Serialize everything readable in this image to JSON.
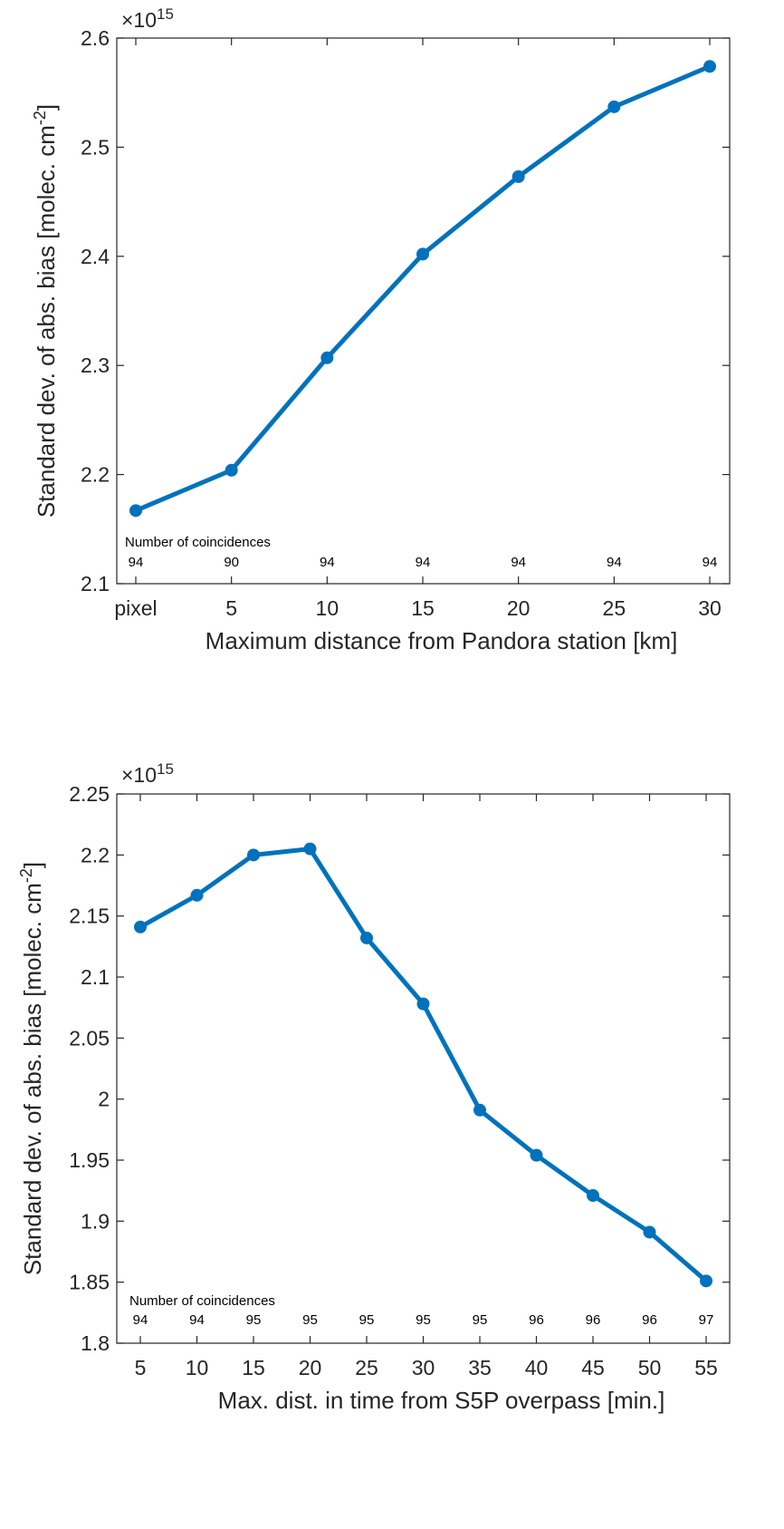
{
  "chart_data": [
    {
      "type": "line",
      "categories": [
        "pixel",
        "5",
        "10",
        "15",
        "20",
        "25",
        "30"
      ],
      "values": [
        2.167,
        2.204,
        2.307,
        2.402,
        2.473,
        2.537,
        2.574
      ],
      "ylim": [
        2.1,
        2.6
      ],
      "yticks": [
        "2.1",
        "2.2",
        "2.3",
        "2.4",
        "2.5",
        "2.6"
      ],
      "exponent_label": "×10",
      "exponent_power": "15",
      "ylabel": "Standard dev. of abs. bias [molec. cm",
      "ylabel_sup": "-2",
      "ylabel_end": "]",
      "xlabel": "Maximum distance from Pandora station [km]",
      "annotation": "Number of coincidences",
      "counts": [
        "94",
        "90",
        "94",
        "94",
        "94",
        "94",
        "94"
      ],
      "grid": false,
      "color": "#0072BD"
    },
    {
      "type": "line",
      "categories": [
        "5",
        "10",
        "15",
        "20",
        "25",
        "30",
        "35",
        "40",
        "45",
        "50",
        "55"
      ],
      "values": [
        2.141,
        2.167,
        2.2,
        2.205,
        2.132,
        2.078,
        1.991,
        1.954,
        1.921,
        1.891,
        1.851
      ],
      "ylim": [
        1.8,
        2.25
      ],
      "yticks": [
        "1.8",
        "1.85",
        "1.9",
        "1.95",
        "2",
        "2.05",
        "2.1",
        "2.15",
        "2.2",
        "2.25"
      ],
      "exponent_label": "×10",
      "exponent_power": "15",
      "ylabel": "Standard dev. of abs. bias [molec. cm",
      "ylabel_sup": "-2",
      "ylabel_end": "]",
      "xlabel": "Max. dist. in time from S5P overpass [min.]",
      "annotation": "Number of coincidences",
      "counts": [
        "94",
        "94",
        "95",
        "95",
        "95",
        "95",
        "95",
        "96",
        "96",
        "96",
        "97"
      ],
      "grid": false,
      "color": "#0072BD"
    }
  ]
}
